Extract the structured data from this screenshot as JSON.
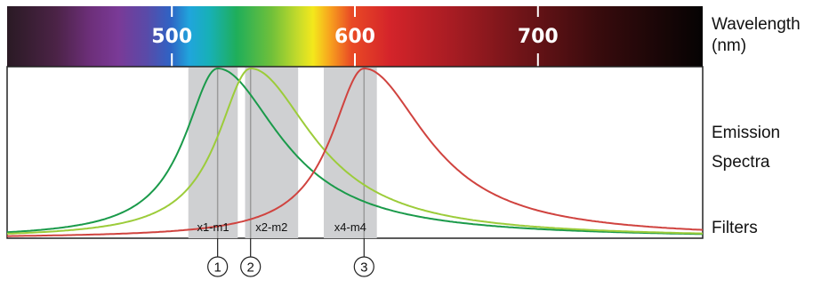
{
  "labels": {
    "wavelength_line1": "Wavelength",
    "wavelength_line2": "(nm)",
    "emission_line1": "Emission",
    "emission_line2": "Spectra",
    "filters": "Filters"
  },
  "ticks": [
    "500",
    "600",
    "700"
  ],
  "filters": [
    {
      "label": "x1-m1",
      "marker": "1"
    },
    {
      "label": "x2-m2",
      "marker": "2"
    },
    {
      "label": "x4-m4",
      "marker": "3"
    }
  ],
  "colors": {
    "curve_green": "#1a9a4a",
    "curve_lime": "#9ccc3a",
    "curve_red": "#d0433f",
    "filter_band": "#cfd0d2",
    "filter_line": "#9a9a9a"
  },
  "chart_data": {
    "type": "line",
    "xlabel": "Wavelength (nm)",
    "xlim": [
      410,
      790
    ],
    "x_ticks": [
      500,
      600,
      700
    ],
    "series": [
      {
        "color": "#1a9a4a",
        "peak": 525
      },
      {
        "color": "#9ccc3a",
        "peak": 543
      },
      {
        "color": "#d0433f",
        "peak": 605
      }
    ],
    "filters": [
      {
        "label": "x1-m1",
        "range": [
          509,
          536
        ],
        "center": 525
      },
      {
        "label": "x2-m2",
        "range": [
          540,
          569
        ],
        "center": 543
      },
      {
        "label": "x4-m4",
        "range": [
          583,
          612
        ],
        "center": 605
      }
    ]
  }
}
